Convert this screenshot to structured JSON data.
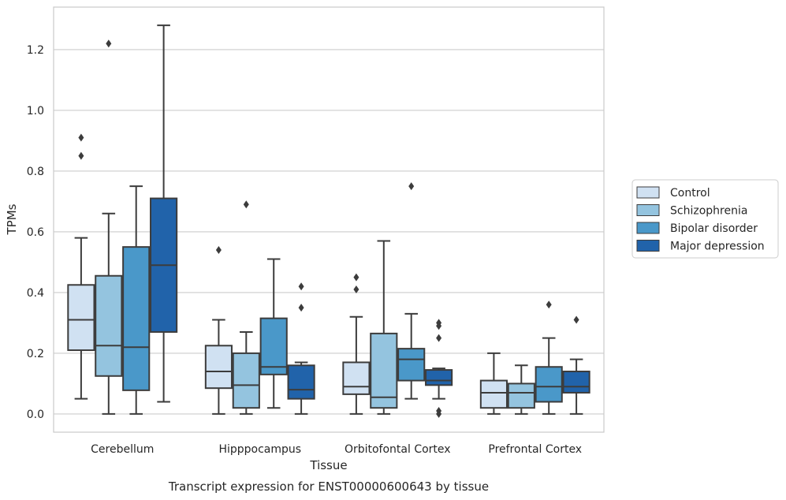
{
  "chart_data": {
    "type": "boxplot",
    "title": "Transcript expression for ENST00000600643 by tissue",
    "xlabel": "Tissue",
    "ylabel": "TPMs",
    "ylim": [
      -0.06,
      1.34
    ],
    "yticks": [
      0.0,
      0.2,
      0.4,
      0.6,
      0.8,
      1.0,
      1.2
    ],
    "ytick_labels": [
      "0.0",
      "0.2",
      "0.4",
      "0.6",
      "0.8",
      "1.0",
      "1.2"
    ],
    "grid": "horizontal",
    "legend_position": "right",
    "categories": [
      "Cerebellum",
      "Hipppocampus",
      "Orbitofontal Cortex",
      "Prefrontal Cortex"
    ],
    "series": [
      {
        "name": "Control",
        "color": "#d0e1f2",
        "boxes": [
          {
            "whislo": 0.05,
            "q1": 0.21,
            "med": 0.31,
            "q3": 0.425,
            "whishi": 0.58,
            "fliers": [
              0.85,
              0.91
            ]
          },
          {
            "whislo": 0.0,
            "q1": 0.085,
            "med": 0.14,
            "q3": 0.225,
            "whishi": 0.31,
            "fliers": [
              0.54
            ]
          },
          {
            "whislo": 0.0,
            "q1": 0.065,
            "med": 0.09,
            "q3": 0.17,
            "whishi": 0.32,
            "fliers": [
              0.41,
              0.45
            ]
          },
          {
            "whislo": 0.0,
            "q1": 0.02,
            "med": 0.07,
            "q3": 0.11,
            "whishi": 0.2,
            "fliers": []
          }
        ]
      },
      {
        "name": "Schizophrenia",
        "color": "#94c4df",
        "boxes": [
          {
            "whislo": 0.0,
            "q1": 0.125,
            "med": 0.225,
            "q3": 0.455,
            "whishi": 0.66,
            "fliers": [
              1.22
            ]
          },
          {
            "whislo": 0.0,
            "q1": 0.02,
            "med": 0.095,
            "q3": 0.2,
            "whishi": 0.27,
            "fliers": [
              0.69
            ]
          },
          {
            "whislo": 0.0,
            "q1": 0.02,
            "med": 0.055,
            "q3": 0.265,
            "whishi": 0.57,
            "fliers": []
          },
          {
            "whislo": 0.0,
            "q1": 0.02,
            "med": 0.07,
            "q3": 0.1,
            "whishi": 0.16,
            "fliers": []
          }
        ]
      },
      {
        "name": "Bipolar disorder",
        "color": "#4a98c9",
        "boxes": [
          {
            "whislo": 0.0,
            "q1": 0.078,
            "med": 0.22,
            "q3": 0.55,
            "whishi": 0.75,
            "fliers": []
          },
          {
            "whislo": 0.02,
            "q1": 0.13,
            "med": 0.155,
            "q3": 0.315,
            "whishi": 0.51,
            "fliers": []
          },
          {
            "whislo": 0.05,
            "q1": 0.11,
            "med": 0.18,
            "q3": 0.215,
            "whishi": 0.33,
            "fliers": [
              0.75
            ]
          },
          {
            "whislo": 0.0,
            "q1": 0.04,
            "med": 0.09,
            "q3": 0.155,
            "whishi": 0.25,
            "fliers": [
              0.36
            ]
          }
        ]
      },
      {
        "name": "Major depression",
        "color": "#2163aa",
        "boxes": [
          {
            "whislo": 0.04,
            "q1": 0.27,
            "med": 0.49,
            "q3": 0.71,
            "whishi": 1.28,
            "fliers": []
          },
          {
            "whislo": 0.0,
            "q1": 0.05,
            "med": 0.08,
            "q3": 0.16,
            "whishi": 0.17,
            "fliers": [
              0.35,
              0.42
            ]
          },
          {
            "whislo": 0.05,
            "q1": 0.095,
            "med": 0.11,
            "q3": 0.145,
            "whishi": 0.15,
            "fliers": [
              0.0,
              0.01,
              0.25,
              0.29,
              0.3
            ]
          },
          {
            "whislo": 0.0,
            "q1": 0.07,
            "med": 0.09,
            "q3": 0.14,
            "whishi": 0.18,
            "fliers": [
              0.31
            ]
          }
        ]
      }
    ]
  }
}
